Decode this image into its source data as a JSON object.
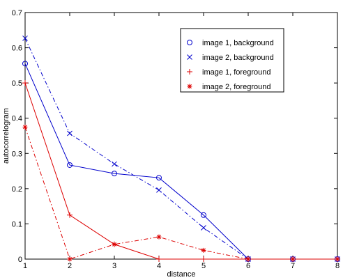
{
  "chart_data": {
    "type": "line",
    "xlabel": "distance",
    "ylabel": "autocorrelogram",
    "xlim": [
      1,
      8
    ],
    "ylim": [
      0,
      0.7
    ],
    "xticks": [
      1,
      2,
      3,
      4,
      5,
      6,
      7,
      8
    ],
    "yticks": [
      0,
      0.1,
      0.2,
      0.3,
      0.4,
      0.5,
      0.6,
      0.7
    ],
    "xtick_labels": [
      "1",
      "2",
      "3",
      "4",
      "5",
      "6",
      "7",
      "8"
    ],
    "ytick_labels": [
      "0",
      "0.1",
      "0.2",
      "0.3",
      "0.4",
      "0.5",
      "0.6",
      "0.7"
    ],
    "grid": false,
    "legend_position": "top-right",
    "series": [
      {
        "name": "image 1, background",
        "color": "#0000cc",
        "line_style": "solid",
        "marker": "circle",
        "x": [
          1,
          2,
          3,
          4,
          5,
          6,
          7,
          8
        ],
        "y": [
          0.555,
          0.267,
          0.243,
          0.231,
          0.125,
          0.0,
          0.0,
          0.0
        ]
      },
      {
        "name": "image 2, background",
        "color": "#0000cc",
        "line_style": "dashdot",
        "marker": "x",
        "x": [
          1,
          2,
          3,
          4,
          5,
          6,
          7,
          8
        ],
        "y": [
          0.627,
          0.357,
          0.27,
          0.196,
          0.089,
          0.0,
          0.0,
          0.0
        ]
      },
      {
        "name": "image 1, foreground",
        "color": "#dd0000",
        "line_style": "solid",
        "marker": "plus",
        "x": [
          1,
          2,
          3,
          4,
          5,
          6,
          7,
          8
        ],
        "y": [
          0.5,
          0.125,
          0.042,
          0.0,
          0.0,
          0.0,
          0.0,
          0.0
        ]
      },
      {
        "name": "image 2, foreground",
        "color": "#dd0000",
        "line_style": "dashdot",
        "marker": "star",
        "x": [
          1,
          2,
          3,
          4,
          5,
          6,
          7,
          8
        ],
        "y": [
          0.375,
          0.0,
          0.042,
          0.063,
          0.025,
          0.0,
          0.0,
          0.0
        ]
      }
    ]
  }
}
